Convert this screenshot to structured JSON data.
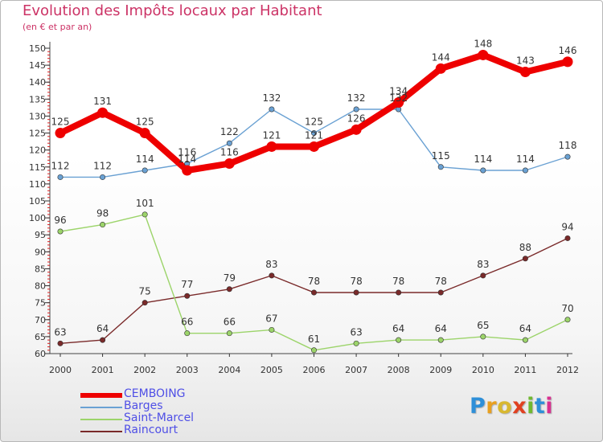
{
  "header": {
    "title": "Evolution des Impôts locaux par Habitant",
    "subtitle": "(en € et par an)"
  },
  "chart_data": {
    "type": "line",
    "title": "Evolution des Impôts locaux par Habitant",
    "subtitle": "(en € et par an)",
    "xlabel": "",
    "ylabel": "",
    "ylim": [
      60,
      150
    ],
    "yticks": [
      60,
      65,
      70,
      75,
      80,
      85,
      90,
      95,
      100,
      105,
      110,
      115,
      120,
      125,
      130,
      135,
      140,
      145,
      150
    ],
    "grid": false,
    "legend_position": "bottom-left",
    "x": [
      "2000",
      "2001",
      "2002",
      "2003",
      "2004",
      "2005",
      "2006",
      "2007",
      "2008",
      "2009",
      "2010",
      "2011",
      "2012"
    ],
    "series": [
      {
        "name": "CEMBOING",
        "color": "#ee0000",
        "values": [
          125,
          131,
          125,
          114,
          116,
          121,
          121,
          126,
          134,
          144,
          148,
          143,
          146
        ]
      },
      {
        "name": "Barges",
        "color": "#6aa1d3",
        "values": [
          112,
          112,
          114,
          116,
          122,
          132,
          125,
          132,
          132,
          115,
          114,
          114,
          118
        ]
      },
      {
        "name": "Saint-Marcel",
        "color": "#9cd46a",
        "values": [
          96,
          98,
          101,
          66,
          66,
          67,
          61,
          63,
          64,
          64,
          65,
          64,
          70
        ]
      },
      {
        "name": "Raincourt",
        "color": "#7a2a2a",
        "values": [
          63,
          64,
          75,
          77,
          79,
          83,
          78,
          78,
          78,
          78,
          83,
          88,
          94
        ]
      }
    ]
  },
  "logo": {
    "letters": [
      "P",
      "r",
      "o",
      "x",
      "i",
      "t",
      "i"
    ],
    "colors": [
      "#2e8fd8",
      "#e8a020",
      "#d8b830",
      "#e04020",
      "#70b830",
      "#2e8fd8",
      "#d83090"
    ]
  }
}
